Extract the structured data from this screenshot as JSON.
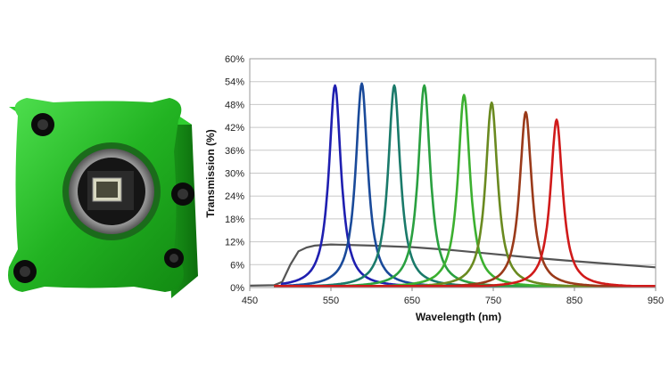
{
  "chart_data": {
    "type": "line",
    "title": "",
    "xlabel": "Wavelength (nm)",
    "ylabel": "Transmission (%)",
    "xlim": [
      450,
      950
    ],
    "ylim": [
      0,
      60
    ],
    "xticks": [
      450,
      550,
      650,
      750,
      850,
      950
    ],
    "xtick_labels": [
      "450",
      "550",
      "650",
      "750",
      "850",
      "950"
    ],
    "yticks": [
      0,
      6,
      12,
      18,
      24,
      30,
      36,
      42,
      48,
      54,
      60
    ],
    "ytick_labels": [
      "0%",
      "6%",
      "12%",
      "18%",
      "24%",
      "30%",
      "36%",
      "42%",
      "48%",
      "54%",
      "60%"
    ],
    "grid": "horizontal",
    "legend": "none",
    "peak_series": [
      {
        "center": 555,
        "peak": 53,
        "color": "#1f1fb0"
      },
      {
        "center": 588,
        "peak": 53.5,
        "color": "#1a4a9a"
      },
      {
        "center": 628,
        "peak": 53,
        "color": "#1a7a6a"
      },
      {
        "center": 665,
        "peak": 53,
        "color": "#2aa040"
      },
      {
        "center": 714,
        "peak": 50.5,
        "color": "#3cb030"
      },
      {
        "center": 748,
        "peak": 48.5,
        "color": "#6a8a20"
      },
      {
        "center": 790,
        "peak": 46,
        "color": "#9a3a1a"
      },
      {
        "center": 828,
        "peak": 44,
        "color": "#d01a1a"
      }
    ],
    "broadband_series": {
      "color": "#555555",
      "x": [
        450,
        480,
        490,
        500,
        510,
        520,
        530,
        550,
        600,
        650,
        700,
        750,
        800,
        850,
        900,
        950
      ],
      "y": [
        0.5,
        0.6,
        1.5,
        6,
        9.5,
        10.5,
        11,
        11.3,
        11,
        10.6,
        9.8,
        8.8,
        7.8,
        6.9,
        6.1,
        5.3
      ]
    }
  }
}
